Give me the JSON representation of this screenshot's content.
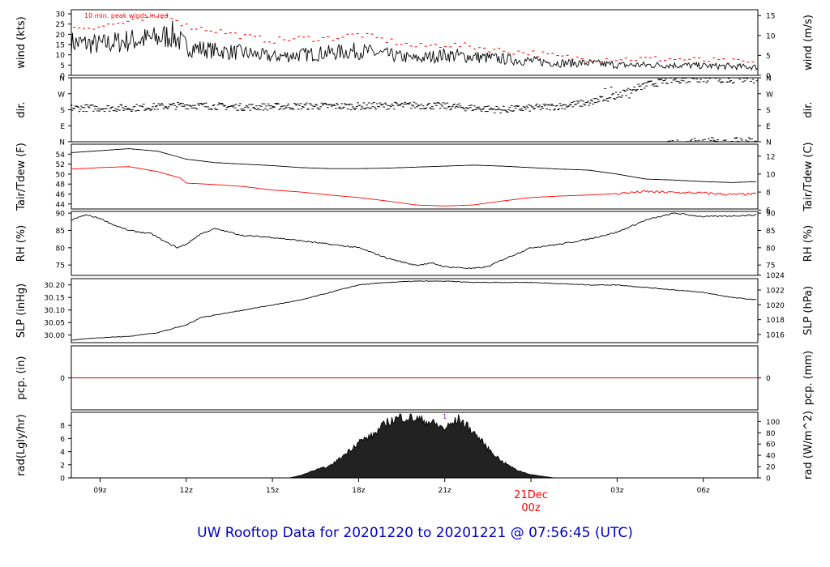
{
  "title": "UW Rooftop Data for 20201220  to  20201221 @ 07:56:45  (UTC)",
  "colors": {
    "trace": "#000000",
    "peak": "#ff0000",
    "dew": "#ff0000",
    "pcp_line": "#cc0000",
    "date_label": "#ff0000",
    "rad_marker": "#9900cc",
    "title": "#0000cc"
  },
  "chart_data": [
    {
      "type": "line",
      "panel": "wind",
      "annotation": "10 min. peak winds in red",
      "ylabel_left": "wind (kts)",
      "ylabel_right": "wind (m/s)",
      "ylim": [
        0,
        32
      ],
      "yticks_left": [
        0,
        5,
        10,
        15,
        20,
        25,
        30
      ],
      "yticks_right": [
        0,
        5,
        10,
        15
      ],
      "right_scale": 0.514444,
      "x": [
        8,
        9,
        10,
        11,
        11.5,
        12,
        13,
        14,
        15,
        16,
        17,
        18,
        19,
        20,
        21,
        22,
        23,
        24,
        25,
        26,
        27,
        28,
        29,
        31.9
      ],
      "series": [
        {
          "values": [
            16,
            15,
            17,
            18,
            20,
            14,
            12,
            11,
            9,
            10,
            11,
            12,
            10,
            8,
            10,
            9,
            8,
            7,
            6,
            6,
            5,
            5,
            5,
            4
          ]
        },
        {
          "values": [
            23,
            24,
            26,
            28,
            29,
            24,
            22,
            19,
            17,
            18,
            18,
            20,
            17,
            14,
            15,
            14,
            12,
            11,
            9,
            8,
            8,
            8,
            8,
            6
          ]
        }
      ]
    },
    {
      "type": "scatter",
      "panel": "direction",
      "ylabel_left": "dir.",
      "ylabel_right": "dir.",
      "ylim": [
        0,
        360
      ],
      "yticks": [
        "N",
        "E",
        "S",
        "W",
        "N"
      ],
      "x": [
        8,
        10,
        12,
        14,
        16,
        18,
        20,
        21,
        22,
        23,
        24,
        25,
        26,
        27,
        28,
        29,
        30,
        31,
        31.9
      ],
      "values": [
        190,
        190,
        205,
        195,
        200,
        200,
        205,
        200,
        190,
        180,
        190,
        200,
        220,
        260,
        320,
        350,
        350,
        350,
        350
      ]
    },
    {
      "type": "line",
      "panel": "temperature",
      "ylabel_left": "Tair/Tdew (F)",
      "ylabel_right": "Tair/Tdew (C)",
      "ylim": [
        43,
        56
      ],
      "yticks_left": [
        44,
        46,
        48,
        50,
        52,
        54
      ],
      "yticks_right": [
        6,
        8,
        10,
        12
      ],
      "series": [
        {
          "name": "Tair",
          "x": [
            8,
            9,
            10,
            11,
            12,
            13,
            14,
            15,
            16,
            17,
            18,
            19,
            20,
            21,
            22,
            23,
            24,
            25,
            26,
            27,
            28,
            29,
            30,
            31,
            31.9
          ],
          "values": [
            54.3,
            54.7,
            55.1,
            54.6,
            53.0,
            52.3,
            52.0,
            51.7,
            51.3,
            51.1,
            51.1,
            51.2,
            51.4,
            51.6,
            51.8,
            51.6,
            51.3,
            51.0,
            50.8,
            50.0,
            49.0,
            48.8,
            48.5,
            48.3,
            48.5
          ]
        },
        {
          "name": "Tdew",
          "x": [
            8,
            9,
            10,
            11,
            11.8,
            12,
            13,
            14,
            15,
            16,
            17,
            18,
            19,
            20,
            21,
            22,
            23,
            24,
            25,
            26,
            27,
            28,
            29,
            30,
            31,
            31.9
          ],
          "values": [
            51.0,
            51.3,
            51.5,
            50.5,
            49.2,
            48.2,
            47.9,
            47.5,
            46.8,
            46.4,
            45.8,
            45.3,
            44.6,
            43.8,
            43.6,
            43.8,
            44.6,
            45.3,
            45.6,
            45.8,
            46.1,
            46.5,
            46.3,
            46.2,
            45.9,
            46.0
          ]
        }
      ]
    },
    {
      "type": "line",
      "panel": "humidity",
      "ylabel_left": "RH (%)",
      "ylabel_right": "RH (%)",
      "ylim": [
        72,
        90.5
      ],
      "yticks": [
        75,
        80,
        85,
        90
      ],
      "x": [
        8,
        8.5,
        9,
        9.5,
        10,
        10.8,
        11.2,
        11.7,
        12,
        12.5,
        13,
        14,
        15,
        16,
        17,
        18,
        19,
        19.7,
        20,
        20.6,
        21,
        22,
        22.5,
        23,
        24,
        25,
        26,
        27,
        28,
        29,
        30,
        31,
        31.9
      ],
      "values": [
        88,
        89.5,
        88.5,
        86.5,
        85,
        84,
        82,
        80,
        81,
        84,
        85.5,
        83.5,
        83,
        82,
        81,
        80,
        77,
        75.5,
        75,
        75.5,
        74.5,
        74,
        74.5,
        76.5,
        80,
        81,
        82.5,
        84.5,
        88,
        90,
        89,
        89.2,
        89.5
      ]
    },
    {
      "type": "line",
      "panel": "pressure",
      "ylabel_left": "SLP (inHg)",
      "ylabel_right": "SLP (hPa)",
      "ylim": [
        29.97,
        30.225
      ],
      "yticks_left": [
        30.0,
        30.05,
        30.1,
        30.15,
        30.2
      ],
      "ytick_labels_left": [
        "30.00",
        "30.05",
        "30.10",
        "30.15",
        "30.20"
      ],
      "yticks_right": [
        1016,
        1018,
        1020,
        1022,
        1024
      ],
      "x": [
        8,
        9,
        10,
        11,
        12,
        12.5,
        13,
        14,
        15,
        16,
        17,
        18,
        19,
        20,
        21,
        22,
        23,
        24,
        25,
        26,
        27,
        28,
        29,
        30,
        31,
        31.9
      ],
      "values": [
        29.98,
        29.99,
        29.995,
        30.01,
        30.04,
        30.07,
        30.08,
        30.1,
        30.12,
        30.14,
        30.17,
        30.2,
        30.21,
        30.215,
        30.215,
        30.21,
        30.21,
        30.21,
        30.205,
        30.2,
        30.2,
        30.19,
        30.18,
        30.17,
        30.15,
        30.14
      ]
    },
    {
      "type": "line",
      "panel": "precipitation",
      "ylabel_left": "pcp. (in)",
      "ylabel_right": "pcp. (mm)",
      "ylim": [
        -1,
        1
      ],
      "yticks": [
        0
      ],
      "x": [
        8,
        31.9
      ],
      "values": [
        0,
        0
      ]
    },
    {
      "type": "area",
      "panel": "radiation",
      "ylabel_left": "rad(Lgly/hr)",
      "ylabel_right": "rad (W/m^2)",
      "marker_label": "1",
      "ylim": [
        0,
        10
      ],
      "yticks_left": [
        0,
        2,
        4,
        6,
        8
      ],
      "yticks_right": [
        0,
        20,
        40,
        60,
        80,
        100
      ],
      "right_scale": 11.63,
      "x": [
        15.6,
        16,
        16.5,
        17,
        17.5,
        18,
        18.5,
        19,
        19.5,
        20,
        20.5,
        21,
        21.5,
        22,
        22.5,
        23,
        23.5,
        24,
        24.8
      ],
      "values": [
        0,
        0.4,
        1.2,
        1.8,
        3.5,
        5.5,
        6.5,
        8.5,
        9.3,
        9.0,
        8.5,
        7.5,
        9.0,
        7.0,
        4.5,
        2.5,
        1.2,
        0.5,
        0
      ]
    }
  ],
  "x_axis": {
    "tick_hours": [
      9,
      12,
      15,
      18,
      21,
      24,
      27,
      30
    ],
    "tick_labels": [
      "09z",
      "12z",
      "15z",
      "18z",
      "21z",
      "00z",
      "03z",
      "06z"
    ],
    "date_label": "21Dec",
    "date_sub": "00z",
    "range": [
      8,
      31.9
    ]
  }
}
